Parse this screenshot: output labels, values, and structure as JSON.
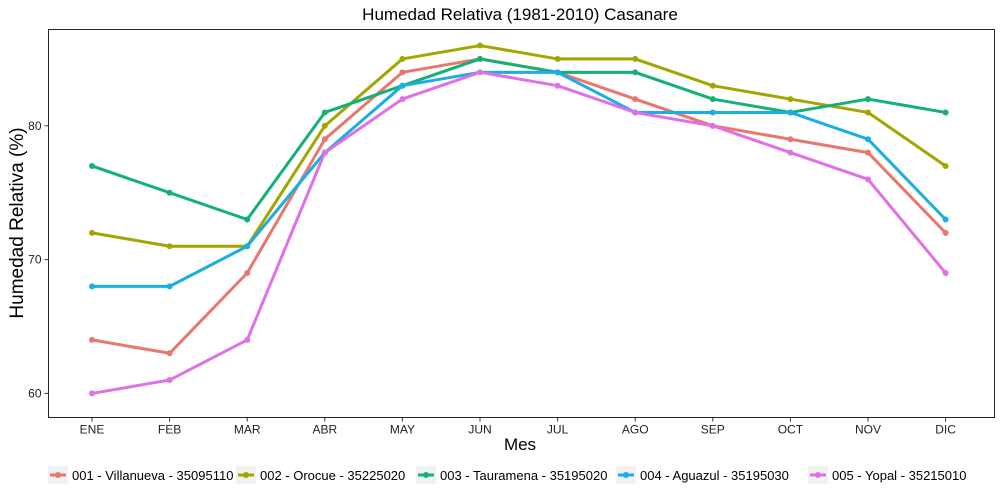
{
  "chart_data": {
    "type": "line",
    "title": "Humedad Relativa (1981-2010)  Casanare",
    "xlabel": "Mes",
    "ylabel": "Humedad Relativa  (%)",
    "categories": [
      "ENE",
      "FEB",
      "MAR",
      "ABR",
      "MAY",
      "JUN",
      "JUL",
      "AGO",
      "SEP",
      "OCT",
      "NOV",
      "DIC"
    ],
    "yticks": [
      60,
      70,
      80
    ],
    "ylim": [
      58.2,
      87.2
    ],
    "grid": false,
    "legend_position": "bottom",
    "series": [
      {
        "name": "001 - Villanueva - 35095110",
        "color": "#E8776E",
        "values": [
          64,
          63,
          69,
          79,
          84,
          85,
          84,
          82,
          80,
          79,
          78,
          72
        ]
      },
      {
        "name": "002 - Orocue - 35225020",
        "color": "#A3A500",
        "values": [
          72,
          71,
          71,
          80,
          85,
          86,
          85,
          85,
          83,
          82,
          81,
          77
        ]
      },
      {
        "name": "003 - Tauramena - 35195020",
        "color": "#14B07A",
        "values": [
          77,
          75,
          73,
          81,
          83,
          85,
          84,
          84,
          82,
          81,
          82,
          81
        ]
      },
      {
        "name": "004 - Aguazul - 35195030",
        "color": "#1AAEE4",
        "values": [
          68,
          68,
          71,
          78,
          83,
          84,
          84,
          81,
          81,
          81,
          79,
          73
        ]
      },
      {
        "name": "005 - Yopal - 35215010",
        "color": "#E070E6",
        "values": [
          60,
          61,
          64,
          78,
          82,
          84,
          83,
          81,
          80,
          78,
          76,
          69
        ]
      }
    ]
  }
}
